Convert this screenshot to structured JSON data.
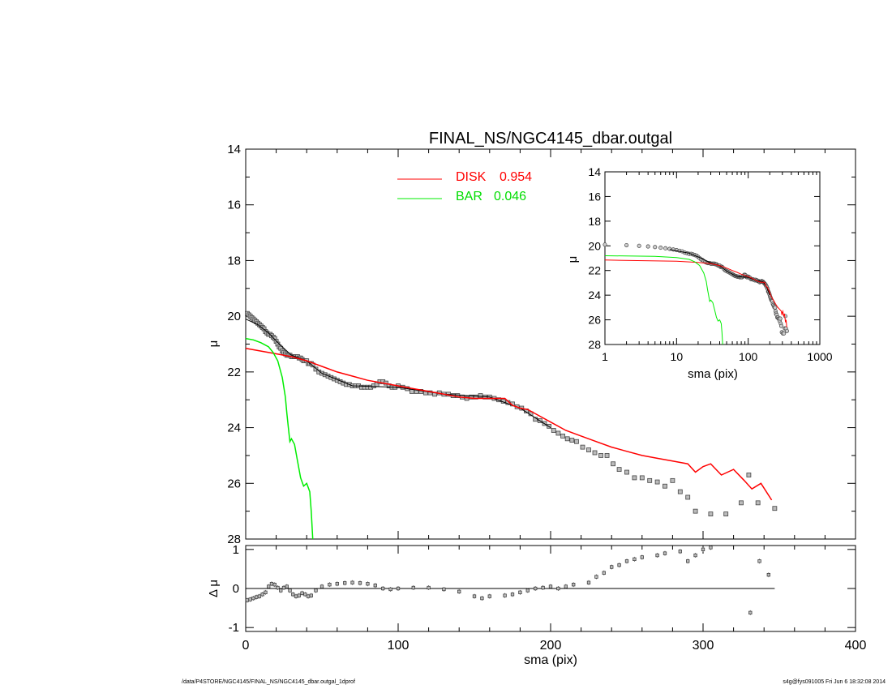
{
  "chart_data": [
    {
      "id": "main",
      "type": "scatter",
      "title": "FINAL_NS/NGC4145_dbar.outgal",
      "ylabel": "μ",
      "xlabel": "",
      "xlim": [
        0,
        400
      ],
      "ylim": [
        28,
        14
      ],
      "yticks": [
        14,
        16,
        18,
        20,
        22,
        24,
        26,
        28
      ],
      "xticks": [
        0,
        100,
        200,
        300,
        400
      ],
      "legend_position": "top-center",
      "legend": [
        {
          "label": "DISK",
          "value": "0.954",
          "color": "#ff0000"
        },
        {
          "label": "BAR",
          "value": "0.046",
          "color": "#00ee00"
        }
      ],
      "series": [
        {
          "kind": "observed",
          "color": "#444444",
          "points": [
            [
              1,
              19.9
            ],
            [
              2,
              19.95
            ],
            [
              3,
              20.0
            ],
            [
              4,
              20.05
            ],
            [
              5,
              20.1
            ],
            [
              6,
              20.15
            ],
            [
              7,
              20.2
            ],
            [
              8,
              20.25
            ],
            [
              9,
              20.3
            ],
            [
              10,
              20.35
            ],
            [
              11,
              20.4
            ],
            [
              12,
              20.45
            ],
            [
              13,
              20.55
            ],
            [
              14,
              20.6
            ],
            [
              15,
              20.65
            ],
            [
              16,
              20.65
            ],
            [
              17,
              20.7
            ],
            [
              18,
              20.75
            ],
            [
              19,
              20.8
            ],
            [
              20,
              20.9
            ],
            [
              21,
              21.0
            ],
            [
              22,
              21.1
            ],
            [
              23,
              21.15
            ],
            [
              24,
              21.25
            ],
            [
              25,
              21.3
            ],
            [
              26,
              21.35
            ],
            [
              27,
              21.4
            ],
            [
              28,
              21.4
            ],
            [
              29,
              21.4
            ],
            [
              30,
              21.45
            ],
            [
              31,
              21.45
            ],
            [
              32,
              21.45
            ],
            [
              33,
              21.45
            ],
            [
              34,
              21.45
            ],
            [
              35,
              21.5
            ],
            [
              36,
              21.5
            ],
            [
              37,
              21.55
            ],
            [
              38,
              21.6
            ],
            [
              39,
              21.6
            ],
            [
              40,
              21.6
            ],
            [
              41,
              21.7
            ],
            [
              42,
              21.7
            ],
            [
              43,
              21.7
            ],
            [
              44,
              21.75
            ],
            [
              46,
              21.9
            ],
            [
              48,
              22.0
            ],
            [
              50,
              22.05
            ],
            [
              52,
              22.1
            ],
            [
              54,
              22.15
            ],
            [
              56,
              22.2
            ],
            [
              58,
              22.25
            ],
            [
              60,
              22.3
            ],
            [
              62,
              22.35
            ],
            [
              64,
              22.4
            ],
            [
              66,
              22.45
            ],
            [
              68,
              22.45
            ],
            [
              70,
              22.5
            ],
            [
              72,
              22.5
            ],
            [
              74,
              22.5
            ],
            [
              76,
              22.55
            ],
            [
              78,
              22.55
            ],
            [
              80,
              22.55
            ],
            [
              82,
              22.55
            ],
            [
              84,
              22.5
            ],
            [
              86,
              22.45
            ],
            [
              88,
              22.35
            ],
            [
              90,
              22.35
            ],
            [
              92,
              22.4
            ],
            [
              94,
              22.5
            ],
            [
              96,
              22.55
            ],
            [
              98,
              22.55
            ],
            [
              100,
              22.5
            ],
            [
              103,
              22.55
            ],
            [
              106,
              22.6
            ],
            [
              109,
              22.7
            ],
            [
              112,
              22.7
            ],
            [
              115,
              22.7
            ],
            [
              118,
              22.75
            ],
            [
              121,
              22.75
            ],
            [
              124,
              22.8
            ],
            [
              127,
              22.75
            ],
            [
              130,
              22.8
            ],
            [
              133,
              22.8
            ],
            [
              136,
              22.85
            ],
            [
              139,
              22.85
            ],
            [
              142,
              22.9
            ],
            [
              145,
              22.95
            ],
            [
              148,
              22.9
            ],
            [
              151,
              22.9
            ],
            [
              154,
              22.85
            ],
            [
              157,
              22.9
            ],
            [
              160,
              22.9
            ],
            [
              163,
              22.95
            ],
            [
              166,
              23.0
            ],
            [
              169,
              23.05
            ],
            [
              172,
              23.1
            ],
            [
              175,
              23.15
            ],
            [
              178,
              23.25
            ],
            [
              181,
              23.3
            ],
            [
              184,
              23.4
            ],
            [
              187,
              23.5
            ],
            [
              190,
              23.7
            ],
            [
              193,
              23.75
            ],
            [
              196,
              23.85
            ],
            [
              199,
              23.95
            ],
            [
              202,
              24.1
            ],
            [
              205,
              24.2
            ],
            [
              208,
              24.3
            ],
            [
              211,
              24.4
            ],
            [
              214,
              24.45
            ],
            [
              217,
              24.5
            ],
            [
              221,
              24.7
            ],
            [
              225,
              24.8
            ],
            [
              229,
              24.9
            ],
            [
              233,
              25.0
            ],
            [
              237,
              25.0
            ],
            [
              241,
              25.3
            ],
            [
              245,
              25.5
            ],
            [
              250,
              25.6
            ],
            [
              255,
              25.8
            ],
            [
              260,
              25.8
            ],
            [
              265,
              25.9
            ],
            [
              270,
              25.95
            ],
            [
              275,
              26.1
            ],
            [
              280,
              25.9
            ],
            [
              285,
              26.3
            ],
            [
              290,
              26.5
            ],
            [
              295,
              27.0
            ],
            [
              305,
              27.1
            ],
            [
              315,
              27.1
            ],
            [
              325,
              26.7
            ],
            [
              330,
              25.7
            ],
            [
              336,
              26.7
            ],
            [
              347,
              26.9
            ]
          ]
        },
        {
          "kind": "model",
          "color": "#000000",
          "points": [
            [
              0,
              20.1
            ],
            [
              8,
              20.3
            ],
            [
              15,
              20.6
            ],
            [
              22,
              21.0
            ],
            [
              30,
              21.4
            ],
            [
              40,
              21.6
            ],
            [
              50,
              22.05
            ],
            [
              70,
              22.5
            ],
            [
              100,
              22.55
            ],
            [
              130,
              22.8
            ],
            [
              160,
              22.9
            ],
            [
              180,
              23.3
            ],
            [
              200,
              24.0
            ]
          ]
        },
        {
          "name": "DISK",
          "color": "#ff0000",
          "points": [
            [
              0,
              21.15
            ],
            [
              10,
              21.25
            ],
            [
              20,
              21.35
            ],
            [
              30,
              21.45
            ],
            [
              40,
              21.6
            ],
            [
              50,
              21.8
            ],
            [
              60,
              22.0
            ],
            [
              70,
              22.15
            ],
            [
              80,
              22.3
            ],
            [
              90,
              22.4
            ],
            [
              100,
              22.5
            ],
            [
              110,
              22.6
            ],
            [
              120,
              22.7
            ],
            [
              130,
              22.8
            ],
            [
              140,
              22.9
            ],
            [
              150,
              22.95
            ],
            [
              160,
              22.95
            ],
            [
              170,
              22.95
            ],
            [
              175,
              23.2
            ],
            [
              180,
              23.3
            ],
            [
              185,
              23.35
            ],
            [
              190,
              23.5
            ],
            [
              200,
              23.8
            ],
            [
              210,
              24.1
            ],
            [
              220,
              24.3
            ],
            [
              230,
              24.5
            ],
            [
              240,
              24.7
            ],
            [
              250,
              24.85
            ],
            [
              260,
              25.0
            ],
            [
              270,
              25.1
            ],
            [
              280,
              25.2
            ],
            [
              290,
              25.3
            ],
            [
              295,
              25.6
            ],
            [
              300,
              25.4
            ],
            [
              305,
              25.3
            ],
            [
              312,
              25.7
            ],
            [
              320,
              25.5
            ],
            [
              327,
              25.9
            ],
            [
              332,
              26.2
            ],
            [
              338,
              26.0
            ],
            [
              345,
              26.6
            ]
          ]
        },
        {
          "name": "BAR",
          "color": "#00ee00",
          "points": [
            [
              0,
              20.8
            ],
            [
              5,
              20.85
            ],
            [
              10,
              20.95
            ],
            [
              15,
              21.1
            ],
            [
              18,
              21.3
            ],
            [
              21,
              21.6
            ],
            [
              24,
              22.2
            ],
            [
              26,
              22.9
            ],
            [
              27,
              23.5
            ],
            [
              28,
              24.0
            ],
            [
              29,
              24.5
            ],
            [
              30,
              24.4
            ],
            [
              32,
              24.6
            ],
            [
              34,
              25.2
            ],
            [
              36,
              25.8
            ],
            [
              38,
              26.1
            ],
            [
              40,
              26.0
            ],
            [
              42,
              26.3
            ],
            [
              43,
              27.0
            ],
            [
              44,
              28.0
            ]
          ]
        }
      ]
    },
    {
      "id": "inset",
      "type": "scatter",
      "xlabel": "sma (pix)",
      "ylabel": "μ",
      "xscale": "log",
      "xlim": [
        1,
        1000
      ],
      "ylim": [
        28,
        14
      ],
      "yticks": [
        14,
        16,
        18,
        20,
        22,
        24,
        26,
        28
      ],
      "xticks": [
        1,
        10,
        100,
        1000
      ]
    },
    {
      "id": "residual",
      "type": "scatter",
      "xlabel": "sma (pix)",
      "ylabel": "Δ μ",
      "xlim": [
        0,
        400
      ],
      "ylim": [
        -1.1,
        1.1
      ],
      "yticks": [
        1,
        0,
        -1
      ],
      "xticks": [
        0,
        100,
        200,
        300,
        400
      ],
      "points": [
        [
          1,
          -0.3
        ],
        [
          3,
          -0.28
        ],
        [
          5,
          -0.25
        ],
        [
          7,
          -0.22
        ],
        [
          9,
          -0.2
        ],
        [
          11,
          -0.15
        ],
        [
          13,
          -0.1
        ],
        [
          15,
          0.05
        ],
        [
          17,
          0.12
        ],
        [
          19,
          0.1
        ],
        [
          21,
          0.02
        ],
        [
          23,
          -0.05
        ],
        [
          25,
          0.02
        ],
        [
          27,
          0.05
        ],
        [
          29,
          -0.05
        ],
        [
          31,
          -0.15
        ],
        [
          33,
          -0.2
        ],
        [
          35,
          -0.18
        ],
        [
          37,
          -0.12
        ],
        [
          39,
          -0.15
        ],
        [
          41,
          -0.2
        ],
        [
          43,
          -0.18
        ],
        [
          46,
          -0.05
        ],
        [
          50,
          0.05
        ],
        [
          55,
          0.1
        ],
        [
          60,
          0.12
        ],
        [
          65,
          0.14
        ],
        [
          70,
          0.15
        ],
        [
          75,
          0.14
        ],
        [
          80,
          0.12
        ],
        [
          85,
          0.08
        ],
        [
          90,
          0.0
        ],
        [
          95,
          -0.02
        ],
        [
          100,
          0.0
        ],
        [
          110,
          0.02
        ],
        [
          120,
          0.02
        ],
        [
          130,
          -0.02
        ],
        [
          140,
          -0.08
        ],
        [
          150,
          -0.2
        ],
        [
          155,
          -0.25
        ],
        [
          160,
          -0.2
        ],
        [
          170,
          -0.18
        ],
        [
          175,
          -0.15
        ],
        [
          180,
          -0.1
        ],
        [
          185,
          -0.05
        ],
        [
          190,
          0.0
        ],
        [
          195,
          0.02
        ],
        [
          200,
          0.05
        ],
        [
          205,
          0.0
        ],
        [
          210,
          0.05
        ],
        [
          215,
          0.1
        ],
        [
          225,
          0.15
        ],
        [
          230,
          0.3
        ],
        [
          235,
          0.4
        ],
        [
          240,
          0.55
        ],
        [
          245,
          0.6
        ],
        [
          250,
          0.7
        ],
        [
          255,
          0.75
        ],
        [
          260,
          0.8
        ],
        [
          270,
          0.85
        ],
        [
          275,
          0.9
        ],
        [
          285,
          0.95
        ],
        [
          290,
          0.7
        ],
        [
          295,
          0.85
        ],
        [
          300,
          1.0
        ],
        [
          305,
          1.05
        ],
        [
          331,
          -0.62
        ],
        [
          337,
          0.7
        ],
        [
          343,
          0.35
        ]
      ]
    }
  ],
  "footer": {
    "left": "/data/P4STORE/NGC4145/FINAL_NS/NGC4145_dbar.outgal_1dprof",
    "right": "s4g@fys091005  Fri Jun  6 18:32:08 2014"
  }
}
